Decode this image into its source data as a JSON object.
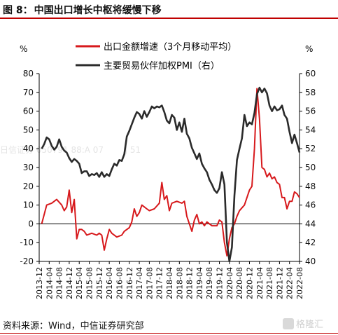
{
  "figure": {
    "label": "图 8：",
    "title": "中国出口增长中枢将缓慢下移"
  },
  "source": "资料来源：Wind，中信证券研究部",
  "watermark": "日信证券  050791 88:A 07        J 51",
  "watermark_bottom": "050791 88:A",
  "logo_text": "格隆汇",
  "colors": {
    "red": "#d7191c",
    "black": "#2b2b2b"
  },
  "chart_data": {
    "type": "line",
    "left_unit": "%",
    "right_unit": "%",
    "ylim_left": [
      -20,
      80
    ],
    "yticks_left": [
      -20,
      -10,
      0,
      10,
      20,
      30,
      40,
      50,
      60,
      70,
      80
    ],
    "ylim_right": [
      40,
      60
    ],
    "yticks_right": [
      40,
      42,
      44,
      46,
      48,
      50,
      52,
      54,
      56,
      58,
      60
    ],
    "x_start": "2013-12",
    "x_end": "2022-08",
    "x_ticks": [
      "2013-12",
      "2014-04",
      "2014-08",
      "2014-12",
      "2015-04",
      "2015-08",
      "2015-12",
      "2016-04",
      "2016-08",
      "2016-12",
      "2017-04",
      "2017-08",
      "2017-12",
      "2018-04",
      "2018-08",
      "2018-12",
      "2019-04",
      "2019-08",
      "2019-12",
      "2020-04",
      "2020-08",
      "2020-12",
      "2021-04",
      "2021-08",
      "2021-12",
      "2022-04",
      "2022-08"
    ],
    "series": [
      {
        "name": "出口金额增速（3个月移动平均）",
        "axis": "left",
        "color": "#d7191c",
        "points": [
          [
            "2014-01",
            0
          ],
          [
            "2014-03",
            10
          ],
          [
            "2014-05",
            11
          ],
          [
            "2014-07",
            13
          ],
          [
            "2014-09",
            10
          ],
          [
            "2014-10",
            7
          ],
          [
            "2014-11",
            9
          ],
          [
            "2014-12",
            18
          ],
          [
            "2015-01",
            6
          ],
          [
            "2015-02",
            13
          ],
          [
            "2015-03",
            -8
          ],
          [
            "2015-04",
            -3
          ],
          [
            "2015-05",
            -3
          ],
          [
            "2015-06",
            -4
          ],
          [
            "2015-07",
            -6
          ],
          [
            "2015-09",
            -5
          ],
          [
            "2015-11",
            -6
          ],
          [
            "2015-12",
            -5
          ],
          [
            "2016-01",
            -6
          ],
          [
            "2016-02",
            -14
          ],
          [
            "2016-03",
            -8
          ],
          [
            "2016-04",
            -3
          ],
          [
            "2016-05",
            -5
          ],
          [
            "2016-07",
            -7
          ],
          [
            "2016-09",
            -6
          ],
          [
            "2016-10",
            -4
          ],
          [
            "2016-12",
            -2
          ],
          [
            "2017-01",
            1
          ],
          [
            "2017-02",
            8
          ],
          [
            "2017-03",
            4
          ],
          [
            "2017-04",
            6
          ],
          [
            "2017-05",
            10
          ],
          [
            "2017-07",
            8
          ],
          [
            "2017-08",
            7
          ],
          [
            "2017-10",
            8
          ],
          [
            "2017-12",
            11
          ],
          [
            "2018-01",
            22
          ],
          [
            "2018-02",
            13
          ],
          [
            "2018-03",
            15
          ],
          [
            "2018-04",
            7
          ],
          [
            "2018-05",
            11
          ],
          [
            "2018-07",
            12
          ],
          [
            "2018-09",
            11
          ],
          [
            "2018-10",
            12
          ],
          [
            "2018-11",
            4
          ],
          [
            "2018-12",
            0
          ],
          [
            "2019-01",
            -4
          ],
          [
            "2019-02",
            2
          ],
          [
            "2019-03",
            5
          ],
          [
            "2019-04",
            0
          ],
          [
            "2019-05",
            1
          ],
          [
            "2019-06",
            -1
          ],
          [
            "2019-07",
            1
          ],
          [
            "2019-09",
            -1
          ],
          [
            "2019-11",
            -1
          ],
          [
            "2019-12",
            2
          ],
          [
            "2020-01",
            1
          ],
          [
            "2020-02",
            -10
          ],
          [
            "2020-03",
            -17
          ],
          [
            "2020-04",
            -8
          ],
          [
            "2020-05",
            -2
          ],
          [
            "2020-06",
            0
          ],
          [
            "2020-07",
            4
          ],
          [
            "2020-08",
            7
          ],
          [
            "2020-10",
            10
          ],
          [
            "2020-12",
            18
          ],
          [
            "2021-01",
            20
          ],
          [
            "2021-02",
            40
          ],
          [
            "2021-03",
            72
          ],
          [
            "2021-04",
            56
          ],
          [
            "2021-05",
            30
          ],
          [
            "2021-06",
            29
          ],
          [
            "2021-07",
            25
          ],
          [
            "2021-08",
            27
          ],
          [
            "2021-09",
            24
          ],
          [
            "2021-10",
            25
          ],
          [
            "2021-11",
            22
          ],
          [
            "2021-12",
            21
          ],
          [
            "2022-01",
            14
          ],
          [
            "2022-02",
            14
          ],
          [
            "2022-03",
            8
          ],
          [
            "2022-04",
            12
          ],
          [
            "2022-05",
            12
          ],
          [
            "2022-06",
            17
          ],
          [
            "2022-07",
            16
          ],
          [
            "2022-08",
            14
          ]
        ]
      },
      {
        "name": "主要贸易伙伴加权PMI（右）",
        "axis": "right",
        "color": "#2b2b2b",
        "points": [
          [
            "2014-01",
            52.0
          ],
          [
            "2014-02",
            52.5
          ],
          [
            "2014-03",
            53.2
          ],
          [
            "2014-04",
            53.0
          ],
          [
            "2014-05",
            52.3
          ],
          [
            "2014-06",
            51.9
          ],
          [
            "2014-07",
            52.2
          ],
          [
            "2014-08",
            53.0
          ],
          [
            "2014-09",
            52.2
          ],
          [
            "2014-10",
            51.8
          ],
          [
            "2014-11",
            51.6
          ],
          [
            "2014-12",
            51.0
          ],
          [
            "2015-01",
            50.6
          ],
          [
            "2015-02",
            50.9
          ],
          [
            "2015-03",
            50.7
          ],
          [
            "2015-04",
            50.4
          ],
          [
            "2015-05",
            49.4
          ],
          [
            "2015-06",
            49.6
          ],
          [
            "2015-07",
            49.6
          ],
          [
            "2015-08",
            49.1
          ],
          [
            "2015-09",
            49.3
          ],
          [
            "2015-10",
            49.2
          ],
          [
            "2015-11",
            49.4
          ],
          [
            "2015-12",
            49.0
          ],
          [
            "2016-01",
            49.5
          ],
          [
            "2016-02",
            49.0
          ],
          [
            "2016-03",
            49.3
          ],
          [
            "2016-04",
            49.1
          ],
          [
            "2016-05",
            49.8
          ],
          [
            "2016-06",
            50.4
          ],
          [
            "2016-07",
            50.2
          ],
          [
            "2016-08",
            50.8
          ],
          [
            "2016-09",
            50.7
          ],
          [
            "2016-10",
            51.4
          ],
          [
            "2016-11",
            53.3
          ],
          [
            "2016-12",
            53.9
          ],
          [
            "2017-01",
            54.6
          ],
          [
            "2017-02",
            55.3
          ],
          [
            "2017-03",
            55.9
          ],
          [
            "2017-04",
            55.7
          ],
          [
            "2017-05",
            55.2
          ],
          [
            "2017-06",
            56.0
          ],
          [
            "2017-07",
            55.4
          ],
          [
            "2017-08",
            55.9
          ],
          [
            "2017-09",
            56.5
          ],
          [
            "2017-10",
            56.3
          ],
          [
            "2017-11",
            56.5
          ],
          [
            "2017-12",
            56.4
          ],
          [
            "2018-01",
            56.6
          ],
          [
            "2018-02",
            55.9
          ],
          [
            "2018-03",
            55.0
          ],
          [
            "2018-04",
            54.7
          ],
          [
            "2018-05",
            55.6
          ],
          [
            "2018-06",
            55.3
          ],
          [
            "2018-07",
            54.0
          ],
          [
            "2018-08",
            54.8
          ],
          [
            "2018-09",
            53.8
          ],
          [
            "2018-10",
            55.2
          ],
          [
            "2018-11",
            53.6
          ],
          [
            "2018-12",
            53.1
          ],
          [
            "2019-01",
            52.1
          ],
          [
            "2019-02",
            51.5
          ],
          [
            "2019-03",
            50.9
          ],
          [
            "2019-04",
            51.5
          ],
          [
            "2019-05",
            50.4
          ],
          [
            "2019-06",
            49.9
          ],
          [
            "2019-07",
            49.5
          ],
          [
            "2019-08",
            48.7
          ],
          [
            "2019-09",
            48.2
          ],
          [
            "2019-10",
            47.6
          ],
          [
            "2019-11",
            47.3
          ],
          [
            "2019-12",
            47.8
          ],
          [
            "2020-01",
            49.5
          ],
          [
            "2020-02",
            48.2
          ],
          [
            "2020-03",
            42.0
          ],
          [
            "2020-04",
            40.0
          ],
          [
            "2020-05",
            41.5
          ],
          [
            "2020-06",
            47.0
          ],
          [
            "2020-07",
            50.8
          ],
          [
            "2020-08",
            52.0
          ],
          [
            "2020-09",
            53.1
          ],
          [
            "2020-10",
            55.6
          ],
          [
            "2020-11",
            54.4
          ],
          [
            "2020-12",
            54.8
          ],
          [
            "2021-01",
            54.6
          ],
          [
            "2021-02",
            55.8
          ],
          [
            "2021-03",
            57.8
          ],
          [
            "2021-04",
            58.5
          ],
          [
            "2021-05",
            58.0
          ],
          [
            "2021-06",
            58.4
          ],
          [
            "2021-07",
            57.9
          ],
          [
            "2021-08",
            56.6
          ],
          [
            "2021-09",
            56.0
          ],
          [
            "2021-10",
            56.5
          ],
          [
            "2021-11",
            56.1
          ],
          [
            "2021-12",
            56.2
          ],
          [
            "2022-01",
            56.6
          ],
          [
            "2022-02",
            55.6
          ],
          [
            "2022-03",
            55.2
          ],
          [
            "2022-04",
            53.8
          ],
          [
            "2022-05",
            52.6
          ],
          [
            "2022-06",
            53.5
          ],
          [
            "2022-07",
            52.6
          ],
          [
            "2022-08",
            51.6
          ]
        ]
      }
    ]
  }
}
